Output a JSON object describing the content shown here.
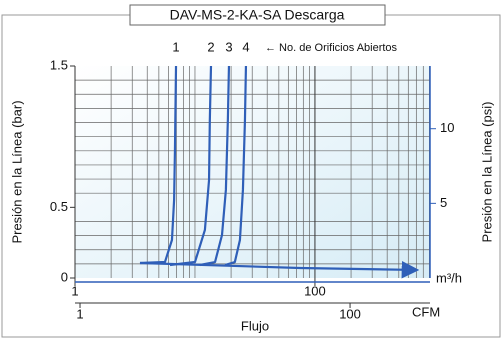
{
  "chart_data": {
    "type": "line",
    "title": "DAV-MS-2-KA-SA Descarga",
    "annotation": "← No. de Orificios Abiertos",
    "ylabel": "Presión en la Línea (bar)",
    "y2label": "Presión en la Línea (psi)",
    "xlabel": "Flujo",
    "xunit": "m³/h",
    "x2unit": "CFM",
    "xscale": "log",
    "xlim": [
      1,
      910
    ],
    "xticks": [
      1,
      100
    ],
    "xgrid": [
      2,
      3,
      4,
      5,
      6,
      7,
      8,
      9,
      10,
      20,
      30,
      40,
      50,
      60,
      70,
      80,
      90,
      200,
      300,
      400,
      500,
      600,
      700,
      800,
      900
    ],
    "x2lim": [
      0.918,
      391
    ],
    "x2ticks": [
      1,
      100
    ],
    "ylim": [
      0,
      1.5
    ],
    "yticks": [
      0,
      0.5,
      1.5
    ],
    "ygrid": [
      0.1,
      0.2,
      0.3,
      0.4,
      0.6,
      0.7,
      0.8,
      0.9,
      1.0,
      1.1,
      1.2,
      1.3,
      1.4
    ],
    "y2lim": [
      0,
      14.2
    ],
    "y2ticks": [
      5,
      10
    ],
    "grid": true,
    "color": "#2f5fb8",
    "series": [
      {
        "name": "1",
        "x": [
          3.48,
          5.62,
          6.43,
          6.7,
          6.81,
          6.95
        ],
        "values": [
          0.106,
          0.113,
          0.269,
          0.552,
          0.906,
          1.5
        ]
      },
      {
        "name": "2",
        "x": [
          6.19,
          10,
          12.1,
          13.1,
          13.3,
          13.6
        ],
        "values": [
          0.092,
          0.113,
          0.34,
          0.693,
          1.118,
          1.5
        ]
      },
      {
        "name": "3",
        "x": [
          11.0,
          14.7,
          16.8,
          18.1,
          18.8,
          19.2
        ],
        "values": [
          0.092,
          0.113,
          0.304,
          0.623,
          1.118,
          1.5
        ]
      },
      {
        "name": "4",
        "x": [
          17.8,
          21.5,
          23.7,
          25.1,
          26.1,
          26.6
        ],
        "values": [
          0.092,
          0.113,
          0.269,
          0.623,
          1.118,
          1.5
        ]
      }
    ],
    "flow_line": {
      "x": [
        3.48,
        75,
        681
      ],
      "values": [
        0.106,
        0.071,
        0.057
      ]
    }
  }
}
